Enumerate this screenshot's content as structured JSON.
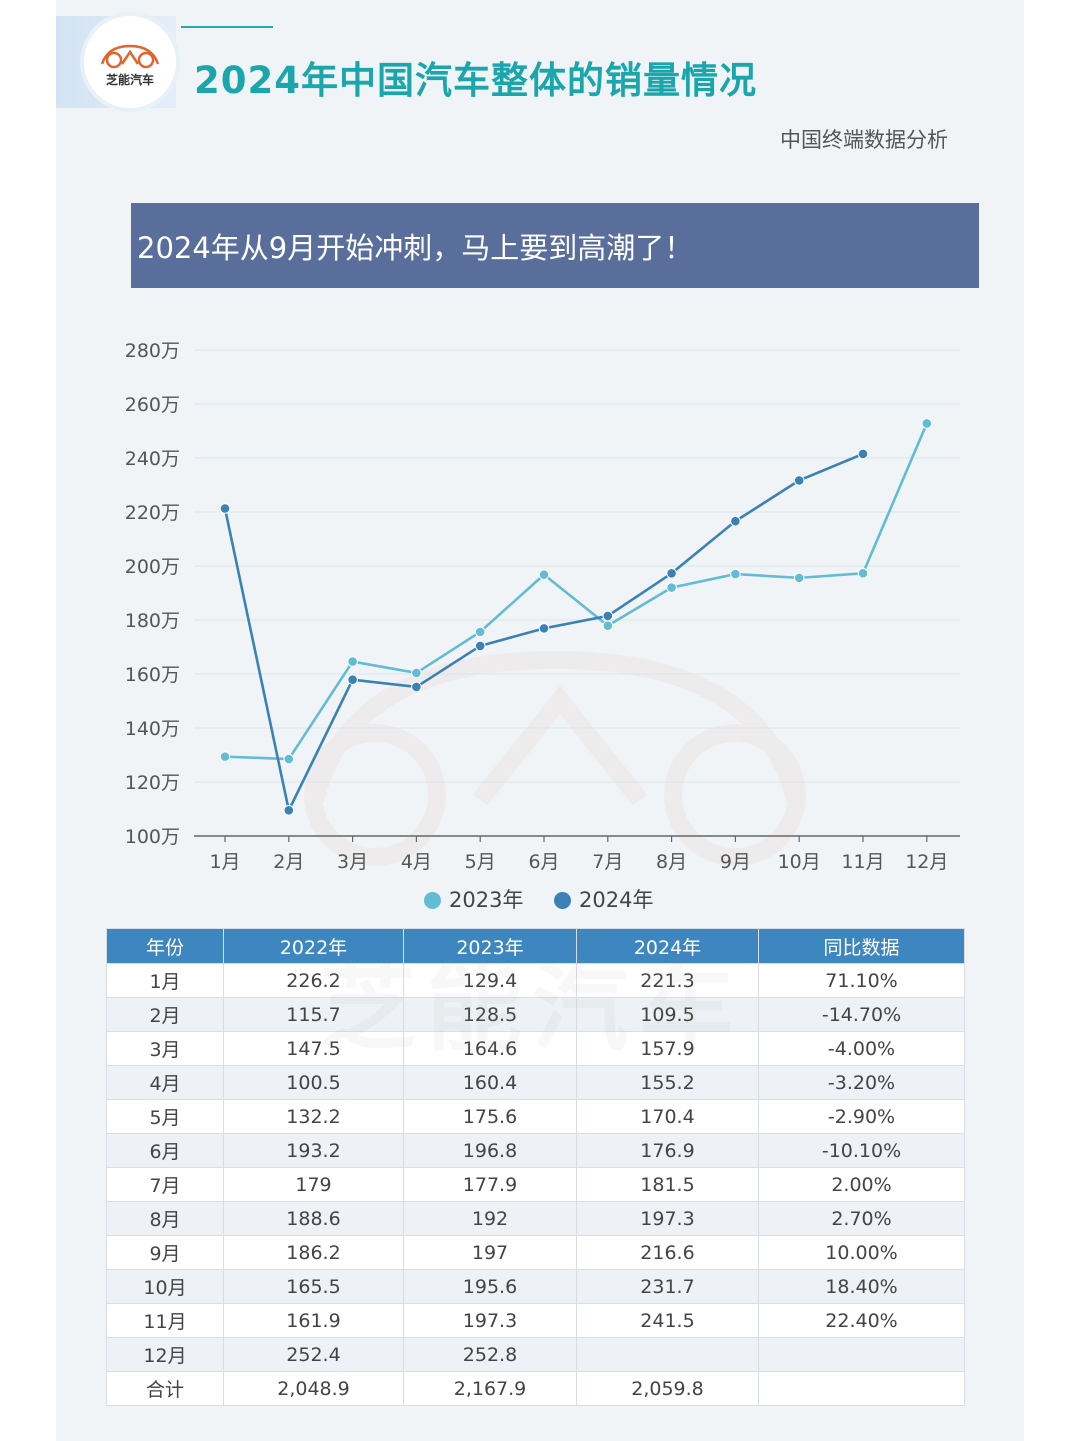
{
  "header": {
    "brand": "芝能汽车",
    "title": "2024年中国汽车整体的销量情况",
    "subtitle": "中国终端数据分析"
  },
  "banner": {
    "text": "2024年从9月开始冲刺，马上要到高潮了！"
  },
  "colors": {
    "series_2023": "#62bcd4",
    "series_2024": "#3a82b6",
    "title": "#1aa6ab",
    "banner": "#5a6e9b",
    "table_header": "#3d86c0"
  },
  "chart_data": {
    "type": "line",
    "categories": [
      "1月",
      "2月",
      "3月",
      "4月",
      "5月",
      "6月",
      "7月",
      "8月",
      "9月",
      "10月",
      "11月",
      "12月"
    ],
    "series": [
      {
        "name": "2023年",
        "values": [
          129.4,
          128.5,
          164.6,
          160.4,
          175.6,
          196.8,
          177.9,
          192,
          197,
          195.6,
          197.3,
          252.8
        ]
      },
      {
        "name": "2024年",
        "values": [
          221.3,
          109.5,
          157.9,
          155.2,
          170.4,
          176.9,
          181.5,
          197.3,
          216.6,
          231.7,
          241.5,
          null
        ]
      }
    ],
    "ylim": [
      100,
      280
    ],
    "yticks": [
      100,
      120,
      140,
      160,
      180,
      200,
      220,
      240,
      260,
      280
    ],
    "ytick_labels": [
      "100万",
      "120万",
      "140万",
      "160万",
      "180万",
      "200万",
      "220万",
      "240万",
      "260万",
      "280万"
    ],
    "grid": true,
    "legend": "bottom-center"
  },
  "table": {
    "headers": [
      "年份",
      "2022年",
      "2023年",
      "2024年",
      "同比数据"
    ],
    "rows": [
      [
        "1月",
        "226.2",
        "129.4",
        "221.3",
        "71.10%"
      ],
      [
        "2月",
        "115.7",
        "128.5",
        "109.5",
        "-14.70%"
      ],
      [
        "3月",
        "147.5",
        "164.6",
        "157.9",
        "-4.00%"
      ],
      [
        "4月",
        "100.5",
        "160.4",
        "155.2",
        "-3.20%"
      ],
      [
        "5月",
        "132.2",
        "175.6",
        "170.4",
        "-2.90%"
      ],
      [
        "6月",
        "193.2",
        "196.8",
        "176.9",
        "-10.10%"
      ],
      [
        "7月",
        "179",
        "177.9",
        "181.5",
        "2.00%"
      ],
      [
        "8月",
        "188.6",
        "192",
        "197.3",
        "2.70%"
      ],
      [
        "9月",
        "186.2",
        "197",
        "216.6",
        "10.00%"
      ],
      [
        "10月",
        "165.5",
        "195.6",
        "231.7",
        "18.40%"
      ],
      [
        "11月",
        "161.9",
        "197.3",
        "241.5",
        "22.40%"
      ],
      [
        "12月",
        "252.4",
        "252.8",
        "",
        ""
      ],
      [
        "合计",
        "2,048.9",
        "2,167.9",
        "2,059.8",
        ""
      ]
    ]
  },
  "watermark": "芝能汽车"
}
